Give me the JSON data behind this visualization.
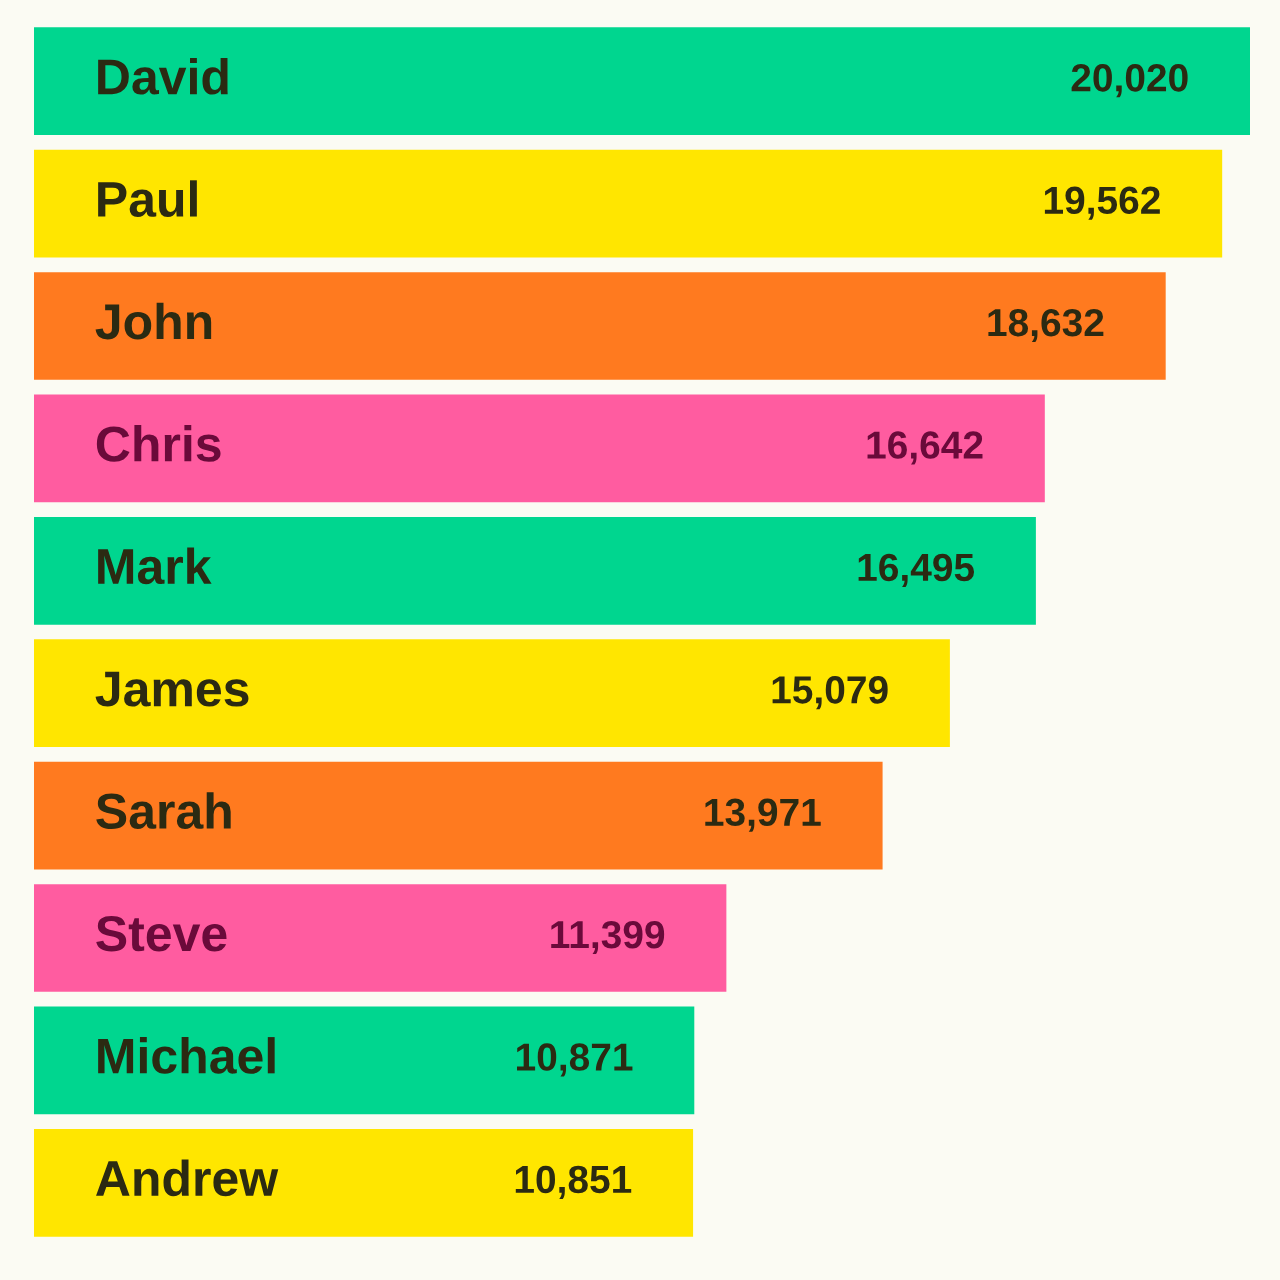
{
  "chart_data": {
    "type": "bar",
    "orientation": "horizontal",
    "value_labels": [
      "20,020",
      "19,562",
      "18,632",
      "16,642",
      "16,495",
      "15,079",
      "13,971",
      "11,399",
      "10,871",
      "10,851"
    ],
    "categories": [
      "David",
      "Paul",
      "John",
      "Chris",
      "Mark",
      "James",
      "Sarah",
      "Steve",
      "Michael",
      "Andrew"
    ],
    "values": [
      20020,
      19562,
      18632,
      16642,
      16495,
      15079,
      13971,
      11399,
      10871,
      10851
    ],
    "colors": [
      "#00d68f",
      "#ffe600",
      "#ff7a1f",
      "#ff5ca0",
      "#00d68f",
      "#ffe600",
      "#ff7a1f",
      "#ff5ca0",
      "#00d68f",
      "#ffe600"
    ],
    "legend": false
  }
}
